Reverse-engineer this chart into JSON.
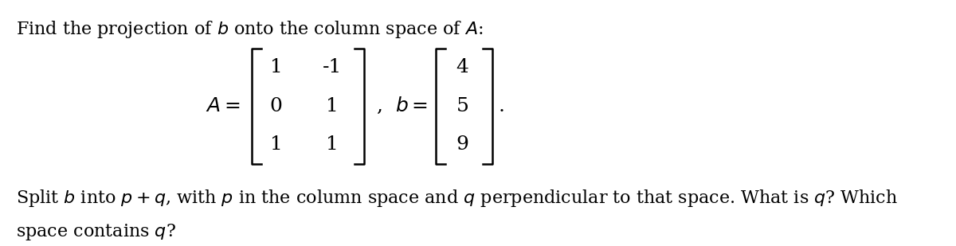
{
  "title_line": "Find the projection of $b$ onto the column space of $A$:",
  "matrix_A_label": "$A = $",
  "matrix_A": [
    [
      1,
      -1
    ],
    [
      0,
      1
    ],
    [
      1,
      1
    ]
  ],
  "matrix_b_label": "$b = $",
  "matrix_b": [
    4,
    5,
    9
  ],
  "bottom_line1": "Split $b$ into $p+q$, with $p$ in the column space and $q$ perpendicular to that space. What is $q$? Which",
  "bottom_line2": "space contains $q$?",
  "bg_color": "#ffffff",
  "text_color": "#000000",
  "font_size_title": 16,
  "font_size_body": 16,
  "font_size_matrix": 18
}
